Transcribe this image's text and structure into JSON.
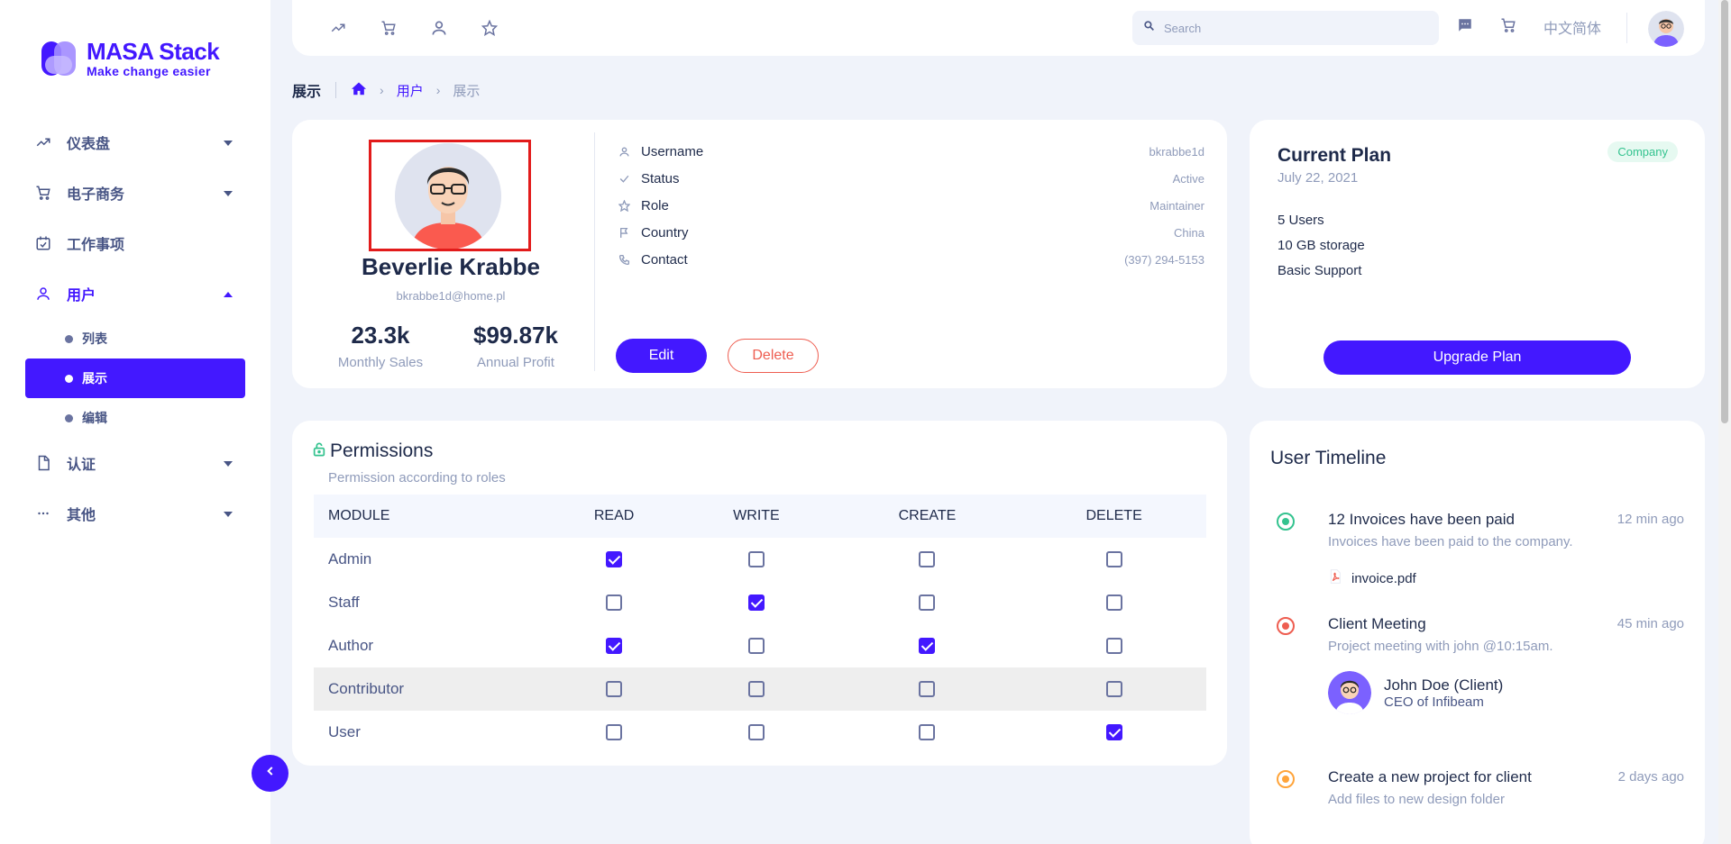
{
  "brand": {
    "title": "MASA Stack",
    "tagline": "Make change easier",
    "accent": "#4318ff"
  },
  "sidebar": {
    "items": [
      {
        "label": "仪表盘",
        "icon": "trending-up-icon"
      },
      {
        "label": "电子商务",
        "icon": "cart-icon"
      },
      {
        "label": "工作事项",
        "icon": "calendar-check-icon"
      },
      {
        "label": "用户",
        "icon": "user-icon"
      },
      {
        "label": "认证",
        "icon": "file-icon"
      },
      {
        "label": "其他",
        "icon": "dots-icon"
      }
    ],
    "user_sub": [
      {
        "label": "列表"
      },
      {
        "label": "展示"
      },
      {
        "label": "编辑"
      }
    ]
  },
  "topbar": {
    "search_placeholder": "Search",
    "language": "中文简体"
  },
  "breadcrumb": {
    "title": "展示",
    "link": "用户",
    "current": "展示"
  },
  "profile": {
    "name": "Beverlie Krabbe",
    "email": "bkrabbe1d@home.pl",
    "stats": [
      {
        "value": "23.3k",
        "label": "Monthly Sales"
      },
      {
        "value": "$99.87k",
        "label": "Annual Profit"
      }
    ],
    "details": [
      {
        "key": "Username",
        "value": "bkrabbe1d",
        "icon": "user-icon"
      },
      {
        "key": "Status",
        "value": "Active",
        "icon": "check-icon"
      },
      {
        "key": "Role",
        "value": "Maintainer",
        "icon": "star-icon"
      },
      {
        "key": "Country",
        "value": "China",
        "icon": "flag-icon"
      },
      {
        "key": "Contact",
        "value": "(397) 294-5153",
        "icon": "phone-icon"
      }
    ],
    "edit_label": "Edit",
    "delete_label": "Delete"
  },
  "plan": {
    "title": "Current Plan",
    "date": "July 22, 2021",
    "badge": "Company",
    "features": [
      "5 Users",
      "10 GB storage",
      "Basic Support"
    ],
    "upgrade_label": "Upgrade Plan"
  },
  "permissions": {
    "title": "Permissions",
    "subtitle": "Permission according to roles",
    "columns": [
      "MODULE",
      "READ",
      "WRITE",
      "CREATE",
      "DELETE"
    ],
    "rows": [
      {
        "module": "Admin",
        "values": [
          true,
          false,
          false,
          false
        ]
      },
      {
        "module": "Staff",
        "values": [
          false,
          true,
          false,
          false
        ]
      },
      {
        "module": "Author",
        "values": [
          true,
          false,
          true,
          false
        ]
      },
      {
        "module": "Contributor",
        "values": [
          false,
          false,
          false,
          false
        ]
      },
      {
        "module": "User",
        "values": [
          false,
          false,
          false,
          true
        ]
      }
    ]
  },
  "timeline": {
    "title": "User Timeline",
    "items": [
      {
        "title": "12 Invoices have been paid",
        "time": "12 min ago",
        "desc": "Invoices have been paid to the company.",
        "file": "invoice.pdf",
        "color": "#34c38f"
      },
      {
        "title": "Client Meeting",
        "time": "45 min ago",
        "desc": "Project meeting with john @10:15am.",
        "person": "John Doe (Client)",
        "role": "CEO of Infibeam",
        "color": "#ee5d50"
      },
      {
        "title": "Create a new project for client",
        "time": "2 days ago",
        "desc": "Add files to new design folder",
        "color": "#ffa43a"
      }
    ]
  }
}
